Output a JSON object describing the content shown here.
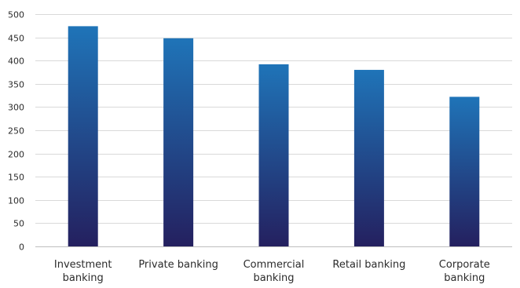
{
  "chart_data": {
    "type": "bar",
    "title": "",
    "xlabel": "",
    "ylabel": "",
    "categories": [
      [
        "Investment",
        "banking"
      ],
      [
        "Private banking"
      ],
      [
        "Commercial",
        "banking"
      ],
      [
        "Retail banking"
      ],
      [
        "Corporate",
        "banking"
      ]
    ],
    "values": [
      474,
      448,
      392,
      380,
      322
    ],
    "ylim": [
      0,
      500
    ],
    "yticks": [
      0,
      50,
      100,
      150,
      200,
      250,
      300,
      350,
      400,
      450,
      500
    ],
    "grid": true,
    "legend": "none",
    "colors": {
      "bar_top": "#1f74b8",
      "bar_bottom": "#24205f",
      "grid": "#d9d9d9",
      "axis": "#bfbfbf",
      "text": "#2b2b2b"
    }
  }
}
